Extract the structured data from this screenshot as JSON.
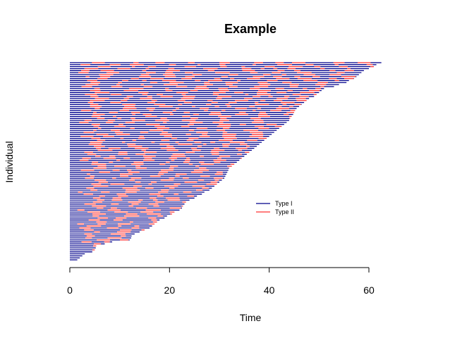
{
  "chart_data": {
    "type": "line",
    "title": "Example",
    "xlabel": "Time",
    "ylabel": "Individual",
    "xlim": [
      0,
      62
    ],
    "x_ticks": [
      0,
      20,
      40,
      60
    ],
    "legend": {
      "position": "center-right",
      "entries": [
        {
          "label": "Type I",
          "color": "#00008B"
        },
        {
          "label": "Type II",
          "color": "#FF3030"
        }
      ]
    },
    "colors": {
      "type_I": "#00008B",
      "type_II": "#FF3030"
    },
    "n_individuals": 100,
    "series_note": "Each individual is a horizontal line from 0 to its end time, alternating Type I (blue) and Type II (red) segments.",
    "end_times_bottom_to_top": [
      1.5,
      2.0,
      2.5,
      3.0,
      4.5,
      5.0,
      5.2,
      5.3,
      7.0,
      8.5,
      12.0,
      12.3,
      12.4,
      13.0,
      14.0,
      15.0,
      16.0,
      16.5,
      17.0,
      17.5,
      18.0,
      19.0,
      19.5,
      20.5,
      21.0,
      22.0,
      22.5,
      22.7,
      23.0,
      23.3,
      24.0,
      25.0,
      25.5,
      26.5,
      27.0,
      28.0,
      28.5,
      29.0,
      29.5,
      30.0,
      30.5,
      31.0,
      31.2,
      31.4,
      31.6,
      31.8,
      32.0,
      32.5,
      33.0,
      33.5,
      34.0,
      34.5,
      35.0,
      35.5,
      36.0,
      36.5,
      37.0,
      37.5,
      38.0,
      38.5,
      39.0,
      39.5,
      40.0,
      40.5,
      41.0,
      41.5,
      42.0,
      42.5,
      43.0,
      43.5,
      44.0,
      44.2,
      44.5,
      44.8,
      45.0,
      45.2,
      45.5,
      46.0,
      46.5,
      47.0,
      47.5,
      48.0,
      49.0,
      49.5,
      50.0,
      50.5,
      51.0,
      53.0,
      54.0,
      55.5,
      56.0,
      57.0,
      57.5,
      58.0,
      58.5,
      59.0,
      60.0,
      61.0,
      61.5,
      62.5
    ]
  }
}
